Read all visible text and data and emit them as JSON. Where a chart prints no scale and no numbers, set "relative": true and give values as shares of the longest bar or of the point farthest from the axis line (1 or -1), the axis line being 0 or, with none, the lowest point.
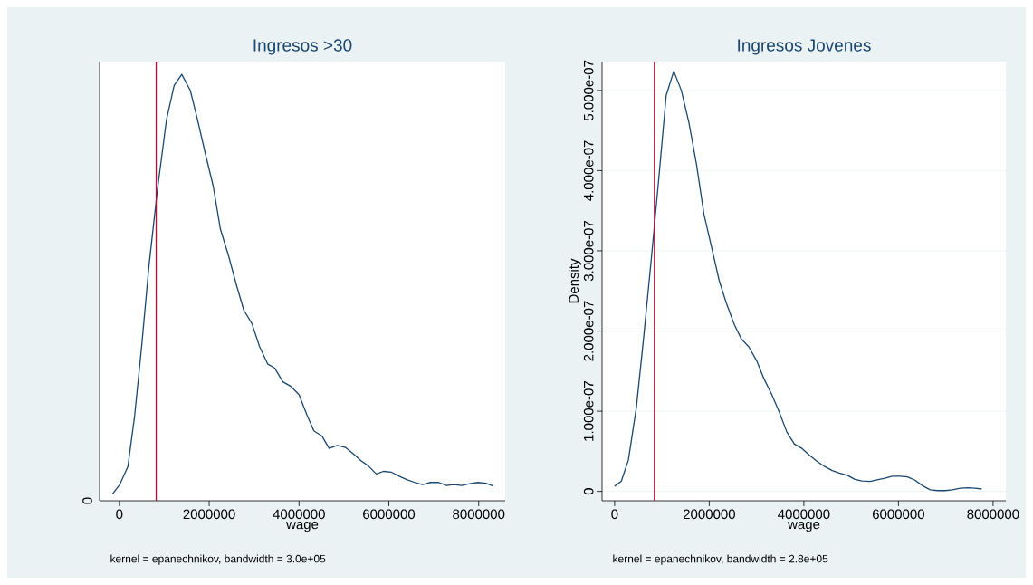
{
  "chart_data": [
    {
      "type": "line",
      "title": "Ingresos >30",
      "xlabel": "wage",
      "relative": true,
      "grid": "y",
      "marker": "none",
      "line_style": "solid",
      "xlim": [
        -440000,
        8590000
      ],
      "xticks": [
        0,
        2000000,
        4000000,
        6000000,
        8000000
      ],
      "ref_lines": [
        {
          "axis": "x",
          "value": 820000,
          "color": "#c10534"
        }
      ],
      "annotations": [
        "kernel = epanechnikov, bandwidth =  3.0e+05",
        "0"
      ],
      "series": [
        {
          "color": "#1a476f",
          "x": [
            -150000,
            10000,
            190000,
            340000,
            500000,
            660000,
            850000,
            1050000,
            1220000,
            1390000,
            1580000,
            1740000,
            1910000,
            2090000,
            2250000,
            2430000,
            2610000,
            2770000,
            2950000,
            3120000,
            3300000,
            3460000,
            3640000,
            3810000,
            4000000,
            4170000,
            4330000,
            4510000,
            4670000,
            4850000,
            5040000,
            5200000,
            5380000,
            5540000,
            5720000,
            5880000,
            6060000,
            6240000,
            6410000,
            6580000,
            6750000,
            6930000,
            7110000,
            7280000,
            7450000,
            7620000,
            7800000,
            7980000,
            8160000,
            8320000
          ],
          "values": [
            0.016,
            0.038,
            0.08,
            0.199,
            0.366,
            0.552,
            0.731,
            0.894,
            0.974,
            1,
            0.962,
            0.894,
            0.816,
            0.738,
            0.637,
            0.575,
            0.505,
            0.447,
            0.416,
            0.362,
            0.321,
            0.311,
            0.279,
            0.269,
            0.249,
            0.203,
            0.164,
            0.152,
            0.123,
            0.13,
            0.125,
            0.111,
            0.094,
            0.082,
            0.063,
            0.069,
            0.067,
            0.057,
            0.049,
            0.043,
            0.038,
            0.043,
            0.043,
            0.036,
            0.038,
            0.036,
            0.04,
            0.043,
            0.041,
            0.035
          ]
        }
      ]
    },
    {
      "type": "line",
      "title": "Ingresos Jovenes",
      "xlabel": "wage",
      "ylabel": "Density",
      "grid": "y",
      "marker": "none",
      "line_style": "solid",
      "xlim": [
        -266000,
        8270000
      ],
      "ylim": [
        -1.17e-08,
        5.36e-07
      ],
      "xticks": [
        0,
        2000000,
        4000000,
        6000000,
        8000000
      ],
      "yticks": [
        0,
        {
          "value": 1e-07,
          "label": "1.000e-07"
        },
        {
          "value": 2e-07,
          "label": "2.000e-07"
        },
        {
          "value": 3e-07,
          "label": "3.000e-07"
        },
        {
          "value": 4e-07,
          "label": "4.000e-07"
        },
        {
          "value": 5e-07,
          "label": "5.000e-07"
        }
      ],
      "ref_lines": [
        {
          "axis": "x",
          "value": 840000,
          "color": "#c10534"
        }
      ],
      "annotations": [
        "kernel = epanechnikov, bandwidth =  2.8e+05"
      ],
      "series": [
        {
          "color": "#1a476f",
          "x": [
            0,
            140000,
            290000,
            460000,
            610000,
            770000,
            930000,
            1090000,
            1250000,
            1410000,
            1570000,
            1730000,
            1890000,
            2040000,
            2210000,
            2360000,
            2530000,
            2680000,
            2840000,
            3010000,
            3160000,
            3320000,
            3480000,
            3640000,
            3800000,
            3950000,
            4120000,
            4280000,
            4440000,
            4600000,
            4750000,
            4920000,
            5080000,
            5230000,
            5400000,
            5550000,
            5710000,
            5870000,
            6030000,
            6190000,
            6350000,
            6510000,
            6670000,
            6830000,
            6990000,
            7140000,
            7310000,
            7470000,
            7620000,
            7760000
          ],
          "values": [
            6.5e-09,
            1.25e-08,
            3.9e-08,
            1.05e-07,
            1.9e-07,
            2.87e-07,
            3.88e-07,
            4.94e-07,
            5.24e-07,
            5e-07,
            4.6e-07,
            4.08e-07,
            3.45e-07,
            3.07e-07,
            2.63e-07,
            2.35e-07,
            2.08e-07,
            1.9e-07,
            1.8e-07,
            1.62e-07,
            1.4e-07,
            1.21e-07,
            9.9e-08,
            7.4e-08,
            5.9e-08,
            5.4e-08,
            4.5e-08,
            3.75e-08,
            3.1e-08,
            2.6e-08,
            2.3e-08,
            2e-08,
            1.5e-08,
            1.3e-08,
            1.25e-08,
            1.45e-08,
            1.65e-08,
            1.9e-08,
            1.9e-08,
            1.8e-08,
            1.4e-08,
            7e-09,
            2e-09,
            1e-09,
            1e-09,
            2e-09,
            4e-09,
            4.5e-09,
            4e-09,
            3e-09
          ]
        }
      ]
    }
  ]
}
